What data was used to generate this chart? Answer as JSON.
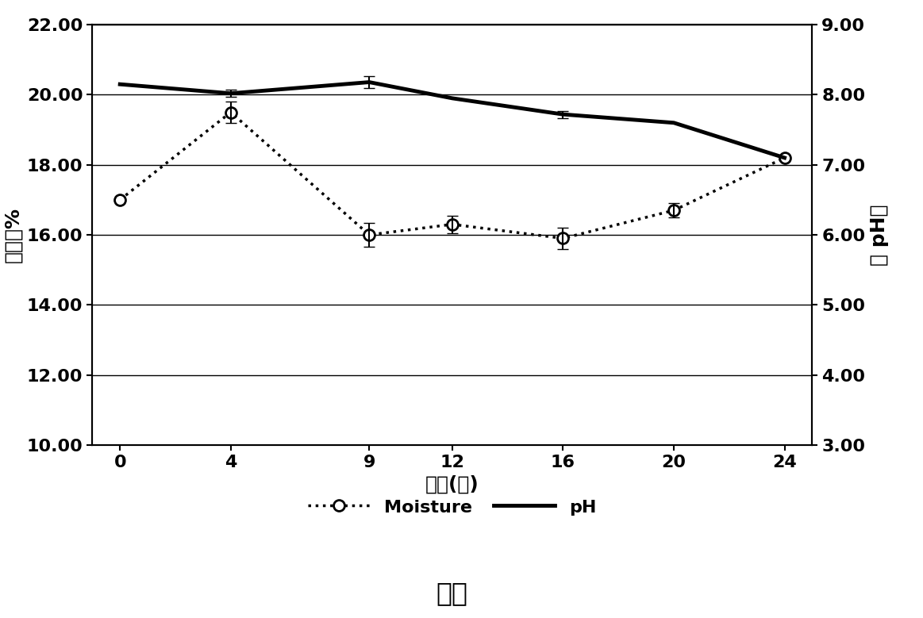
{
  "x": [
    0,
    4,
    9,
    12,
    16,
    20,
    24
  ],
  "moisture": [
    17.0,
    19.5,
    16.0,
    16.3,
    15.9,
    16.7,
    18.2
  ],
  "moisture_err": [
    0.0,
    0.3,
    0.35,
    0.25,
    0.3,
    0.2,
    0.0
  ],
  "ph": [
    8.15,
    8.02,
    8.18,
    7.95,
    7.72,
    7.6,
    7.1
  ],
  "ph_err": [
    0.0,
    0.05,
    0.08,
    0.0,
    0.05,
    0.0,
    0.0
  ],
  "moisture_ylim": [
    10.0,
    22.0
  ],
  "ph_ylim": [
    3.0,
    9.0
  ],
  "moisture_yticks": [
    10.0,
    12.0,
    14.0,
    16.0,
    18.0,
    20.0,
    22.0
  ],
  "ph_yticks": [
    3.0,
    4.0,
    5.0,
    6.0,
    7.0,
    8.0,
    9.0
  ],
  "xticks": [
    0,
    4,
    9,
    12,
    16,
    20,
    24
  ],
  "xlabel": "时间(月)",
  "ylabel_left": "土湿度%",
  "ylabel_right": "土 pH値",
  "title": "湿度",
  "legend_moisture": "Moisture",
  "legend_ph": "pH",
  "line_color": "#000000",
  "bg_color": "#ffffff",
  "grid_color": "#000000"
}
